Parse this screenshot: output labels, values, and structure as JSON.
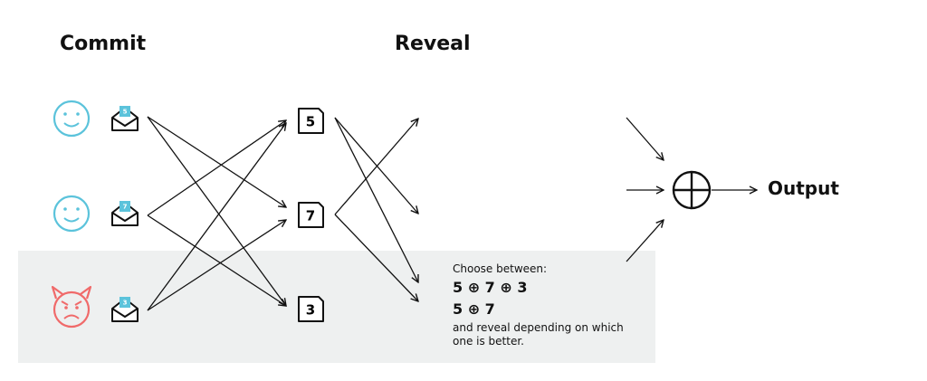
{
  "headings": {
    "commit": "Commit",
    "reveal": "Reveal"
  },
  "participants": [
    {
      "type": "honest",
      "face_color": "#5bc3db",
      "envelope_value": "5"
    },
    {
      "type": "honest",
      "face_color": "#5bc3db",
      "envelope_value": "7"
    },
    {
      "type": "malicious",
      "face_color": "#f06a6a",
      "envelope_value": "3"
    }
  ],
  "revealed_values": [
    "5",
    "7",
    "3"
  ],
  "note": {
    "intro": "Choose between:",
    "option_1": "5 ⊕ 7 ⊕ 3",
    "option_2": "5 ⊕ 7",
    "outro": "and reveal depending on which one is better."
  },
  "operator_symbol": "⊕",
  "output_label": "Output",
  "colors": {
    "honest": "#5bc3db",
    "malicious": "#f06a6a",
    "envelope_badge": "#5bc3db",
    "shaded_region": "#eef0f0",
    "ink": "#111111"
  },
  "icons": [
    "smiley-face-icon",
    "angry-devil-face-icon",
    "open-envelope-icon",
    "xor-circle-icon",
    "arrow-icon"
  ]
}
